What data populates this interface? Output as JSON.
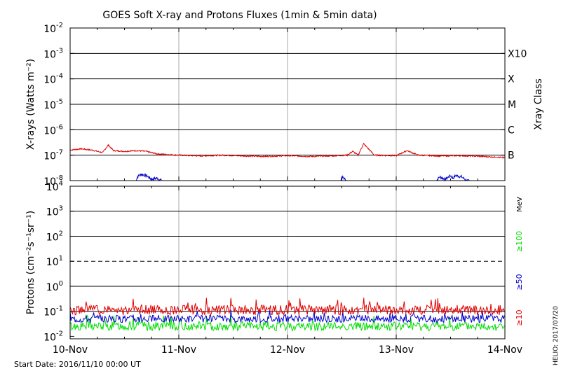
{
  "title": "GOES Soft X-ray and Protons Fluxes    (1min & 5min data)",
  "footer": {
    "start_date": "Start Date: 2016/11/10 00:00 UT",
    "credit": "HELIO: 2017/07/20"
  },
  "colors": {
    "red": "#e00000",
    "blue": "#0000cc",
    "green": "#00dd00",
    "grid": "#aaaaaa",
    "axis": "#000000"
  },
  "chart_data": [
    {
      "type": "line",
      "panel": "xrays",
      "ylabel": "X-rays (Watts m⁻²)",
      "y2label": "Xray Class",
      "yscale": "log",
      "ylim_exp": [
        -8,
        -2
      ],
      "x_ticks": [
        "10-Nov",
        "11-Nov",
        "12-Nov",
        "13-Nov",
        "14-Nov"
      ],
      "xlim_days": [
        0,
        4
      ],
      "y_ticks": [
        {
          "base": "10",
          "exp": "-2"
        },
        {
          "base": "10",
          "exp": "-3"
        },
        {
          "base": "10",
          "exp": "-4"
        },
        {
          "base": "10",
          "exp": "-5"
        },
        {
          "base": "10",
          "exp": "-6"
        },
        {
          "base": "10",
          "exp": "-7"
        },
        {
          "base": "10",
          "exp": "-8"
        }
      ],
      "class_labels": [
        {
          "label": "X10",
          "exp": -3
        },
        {
          "label": "X",
          "exp": -4
        },
        {
          "label": "M",
          "exp": -5
        },
        {
          "label": "C",
          "exp": -6
        },
        {
          "label": "B",
          "exp": -7
        }
      ],
      "series": [
        {
          "color": "red",
          "x": [
            0,
            0.1,
            0.2,
            0.3,
            0.35,
            0.4,
            0.5,
            0.6,
            0.7,
            0.8,
            1.0,
            1.2,
            1.4,
            1.6,
            1.8,
            2.0,
            2.2,
            2.4,
            2.55,
            2.6,
            2.65,
            2.7,
            2.8,
            3.0,
            3.1,
            3.2,
            3.4,
            3.6,
            3.8,
            4.0
          ],
          "exp": [
            -6.8,
            -6.75,
            -6.8,
            -6.9,
            -6.6,
            -6.82,
            -6.85,
            -6.82,
            -6.85,
            -6.95,
            -7.0,
            -7.03,
            -7.0,
            -7.03,
            -7.05,
            -7.02,
            -7.05,
            -7.03,
            -7.0,
            -6.85,
            -7.0,
            -6.55,
            -7.0,
            -7.02,
            -6.82,
            -7.0,
            -7.03,
            -7.02,
            -7.05,
            -7.1
          ]
        },
        {
          "color": "blue",
          "x": [
            0.6,
            0.62,
            0.65,
            0.7,
            0.75,
            0.8,
            0.84,
            0.85,
            2.48,
            2.5,
            2.53,
            2.55,
            2.6,
            3.36,
            3.4,
            3.45,
            3.5,
            3.52,
            3.55,
            3.6,
            3.65,
            3.7,
            3.75,
            3.8
          ],
          "exp": [
            -8.05,
            -7.85,
            -7.75,
            -7.8,
            -7.95,
            -7.9,
            -8.0,
            -8.1,
            -8.1,
            -7.85,
            -7.95,
            -8.05,
            -8.1,
            -8.05,
            -7.85,
            -7.95,
            -7.8,
            -7.9,
            -7.8,
            -7.85,
            -8.0,
            -8.05,
            -8.08,
            -8.1
          ]
        }
      ]
    },
    {
      "type": "line",
      "panel": "protons",
      "ylabel": "Protons (cm⁻²s⁻¹sr⁻¹)",
      "unit": "MeV",
      "yscale": "log",
      "ylim_exp": [
        -2.1,
        4
      ],
      "threshold_exp": 1,
      "y_ticks": [
        {
          "base": "10",
          "exp": "4"
        },
        {
          "base": "10",
          "exp": "3"
        },
        {
          "base": "10",
          "exp": "2"
        },
        {
          "base": "10",
          "exp": "1"
        },
        {
          "base": "10",
          "exp": "0"
        },
        {
          "base": "10",
          "exp": "-1"
        },
        {
          "base": "10",
          "exp": "-2"
        }
      ],
      "series": [
        {
          "name": "≥100",
          "color": "green",
          "mean_exp": -1.6,
          "jitter": 0.18
        },
        {
          "name": "≥50",
          "color": "blue",
          "mean_exp": -1.3,
          "jitter": 0.15
        },
        {
          "name": "≥10",
          "color": "red",
          "mean_exp": -0.95,
          "jitter": 0.2
        }
      ]
    }
  ]
}
